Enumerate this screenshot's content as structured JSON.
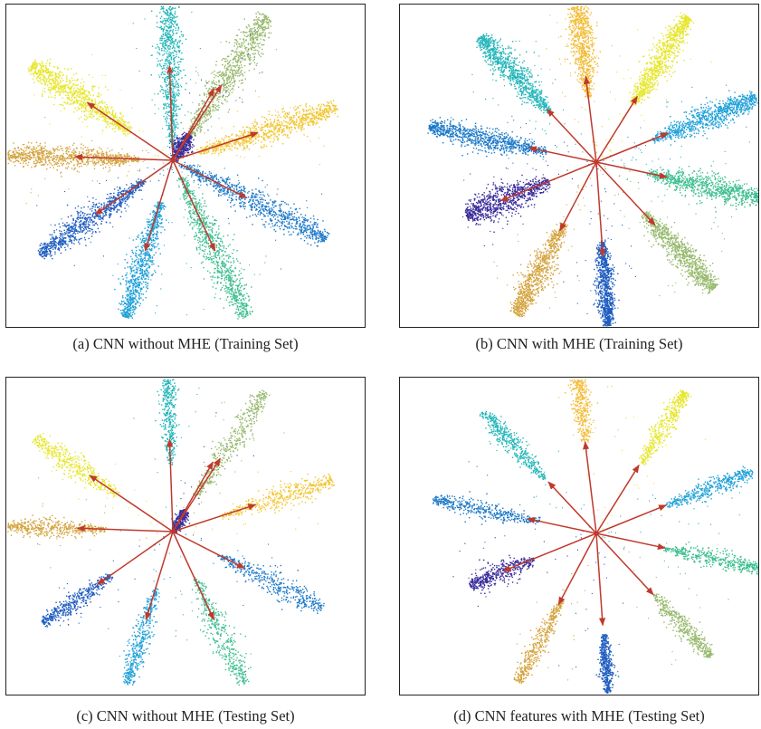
{
  "figure": {
    "captions": [
      "(a) CNN without MHE (Training Set)",
      "(b) CNN with MHE (Training Set)",
      "(c) CNN without MHE (Testing Set)",
      "(d) CNN features with MHE (Testing Set)"
    ]
  },
  "chart_data": [
    {
      "type": "scatter",
      "title": "(a) CNN without MHE (Training Set)",
      "axes_visible": false,
      "grid": false,
      "arrow_color": "#c0392b",
      "clusters": [
        {
          "color": "#21b5b8",
          "angle_deg": 92,
          "start": 0.08,
          "end": 1.0,
          "width": 0.03,
          "arrow": 0.55,
          "density": 1.0
        },
        {
          "color": "#96b86b",
          "angle_deg": 57,
          "start": 0.15,
          "end": 1.0,
          "width": 0.04,
          "arrow": 0.52,
          "density": 1.0
        },
        {
          "color": "#f2c530",
          "angle_deg": 18,
          "start": 0.15,
          "end": 1.0,
          "width": 0.032,
          "arrow": 0.52,
          "density": 1.0
        },
        {
          "color": "#1b78c8",
          "angle_deg": -27,
          "start": 0.05,
          "end": 1.0,
          "width": 0.038,
          "arrow": 0.48,
          "density": 1.0
        },
        {
          "color": "#3cbf8f",
          "angle_deg": -65,
          "start": 0.1,
          "end": 1.0,
          "width": 0.038,
          "arrow": 0.58,
          "density": 1.0
        },
        {
          "color": "#1ea0d8",
          "angle_deg": -107,
          "start": 0.25,
          "end": 0.95,
          "width": 0.032,
          "arrow": 0.55,
          "density": 1.0
        },
        {
          "color": "#1e5dc0",
          "angle_deg": -145,
          "start": 0.2,
          "end": 0.95,
          "width": 0.032,
          "arrow": 0.55,
          "density": 1.0
        },
        {
          "color": "#d4a33d",
          "angle_deg": 178,
          "start": 0.2,
          "end": 1.0,
          "width": 0.028,
          "arrow": 0.57,
          "density": 1.0
        },
        {
          "color": "#e6e62a",
          "angle_deg": 146,
          "start": 0.3,
          "end": 1.0,
          "width": 0.036,
          "arrow": 0.6,
          "density": 1.0
        },
        {
          "color": "#3a2d9c",
          "angle_deg": 60,
          "start": 0.0,
          "end": 0.18,
          "width": 0.035,
          "arrow": 0.48,
          "density": 0.6
        }
      ]
    },
    {
      "type": "scatter",
      "title": "(b) CNN with MHE (Training Set)",
      "axes_visible": false,
      "grid": false,
      "arrow_color": "#c0392b",
      "clusters": [
        {
          "color": "#f2bb33",
          "angle_deg": 97,
          "start": 0.38,
          "end": 1.0,
          "width": 0.03,
          "arrow": 0.5,
          "density": 1.0
        },
        {
          "color": "#e6e62a",
          "angle_deg": 58,
          "start": 0.4,
          "end": 1.0,
          "width": 0.03,
          "arrow": 0.45,
          "density": 1.0
        },
        {
          "color": "#1ea0d8",
          "angle_deg": 22,
          "start": 0.35,
          "end": 1.0,
          "width": 0.03,
          "arrow": 0.45,
          "density": 1.0
        },
        {
          "color": "#3cbf8f",
          "angle_deg": -12,
          "start": 0.3,
          "end": 1.0,
          "width": 0.03,
          "arrow": 0.42,
          "density": 1.0
        },
        {
          "color": "#96b86b",
          "angle_deg": -47,
          "start": 0.4,
          "end": 1.0,
          "width": 0.03,
          "arrow": 0.5,
          "density": 1.0
        },
        {
          "color": "#1e5dc0",
          "angle_deg": -86,
          "start": 0.45,
          "end": 0.95,
          "width": 0.022,
          "arrow": 0.55,
          "density": 1.0
        },
        {
          "color": "#d4a33d",
          "angle_deg": -118,
          "start": 0.4,
          "end": 1.0,
          "width": 0.03,
          "arrow": 0.45,
          "density": 1.0
        },
        {
          "color": "#3a2d9c",
          "angle_deg": -158,
          "start": 0.3,
          "end": 0.82,
          "width": 0.04,
          "arrow": 0.6,
          "density": 1.0
        },
        {
          "color": "#1b78c8",
          "angle_deg": 168,
          "start": 0.3,
          "end": 1.0,
          "width": 0.028,
          "arrow": 0.4,
          "density": 1.0
        },
        {
          "color": "#21b5b8",
          "angle_deg": 133,
          "start": 0.4,
          "end": 1.0,
          "width": 0.03,
          "arrow": 0.42,
          "density": 1.0
        }
      ]
    },
    {
      "type": "scatter",
      "title": "(c) CNN without MHE (Testing Set)",
      "axes_visible": false,
      "grid": false,
      "arrow_color": "#c0392b",
      "clusters": [
        {
          "color": "#21b5b8",
          "angle_deg": 92,
          "start": 0.4,
          "end": 1.0,
          "width": 0.02,
          "arrow": 0.55,
          "density": 0.5
        },
        {
          "color": "#96b86b",
          "angle_deg": 57,
          "start": 0.25,
          "end": 1.0,
          "width": 0.03,
          "arrow": 0.52,
          "density": 0.5
        },
        {
          "color": "#f2c530",
          "angle_deg": 18,
          "start": 0.3,
          "end": 1.0,
          "width": 0.028,
          "arrow": 0.52,
          "density": 0.5
        },
        {
          "color": "#1b78c8",
          "angle_deg": -27,
          "start": 0.3,
          "end": 1.0,
          "width": 0.03,
          "arrow": 0.48,
          "density": 0.5
        },
        {
          "color": "#3cbf8f",
          "angle_deg": -65,
          "start": 0.3,
          "end": 1.0,
          "width": 0.03,
          "arrow": 0.58,
          "density": 0.5
        },
        {
          "color": "#1ea0d8",
          "angle_deg": -107,
          "start": 0.35,
          "end": 0.95,
          "width": 0.025,
          "arrow": 0.55,
          "density": 0.5
        },
        {
          "color": "#1e5dc0",
          "angle_deg": -145,
          "start": 0.45,
          "end": 0.95,
          "width": 0.022,
          "arrow": 0.55,
          "density": 0.5
        },
        {
          "color": "#d4a33d",
          "angle_deg": 178,
          "start": 0.4,
          "end": 1.0,
          "width": 0.022,
          "arrow": 0.57,
          "density": 0.5
        },
        {
          "color": "#e6e62a",
          "angle_deg": 146,
          "start": 0.4,
          "end": 1.0,
          "width": 0.028,
          "arrow": 0.6,
          "density": 0.5
        },
        {
          "color": "#3a2d9c",
          "angle_deg": 60,
          "start": 0.0,
          "end": 0.15,
          "width": 0.03,
          "arrow": 0.48,
          "density": 0.4
        }
      ]
    },
    {
      "type": "scatter",
      "title": "(d) CNN features with MHE (Testing Set)",
      "axes_visible": false,
      "grid": false,
      "arrow_color": "#c0392b",
      "clusters": [
        {
          "color": "#f2bb33",
          "angle_deg": 97,
          "start": 0.55,
          "end": 1.0,
          "width": 0.022,
          "arrow": 0.55,
          "density": 0.5
        },
        {
          "color": "#e6e62a",
          "angle_deg": 58,
          "start": 0.5,
          "end": 1.0,
          "width": 0.022,
          "arrow": 0.48,
          "density": 0.5
        },
        {
          "color": "#1ea0d8",
          "angle_deg": 22,
          "start": 0.45,
          "end": 1.0,
          "width": 0.022,
          "arrow": 0.45,
          "density": 0.5
        },
        {
          "color": "#3cbf8f",
          "angle_deg": -12,
          "start": 0.4,
          "end": 1.0,
          "width": 0.022,
          "arrow": 0.42,
          "density": 0.5
        },
        {
          "color": "#96b86b",
          "angle_deg": -47,
          "start": 0.5,
          "end": 1.0,
          "width": 0.022,
          "arrow": 0.5,
          "density": 0.5
        },
        {
          "color": "#1e5dc0",
          "angle_deg": -86,
          "start": 0.6,
          "end": 0.95,
          "width": 0.015,
          "arrow": 0.55,
          "density": 0.5
        },
        {
          "color": "#d4a33d",
          "angle_deg": -118,
          "start": 0.45,
          "end": 1.0,
          "width": 0.022,
          "arrow": 0.48,
          "density": 0.5
        },
        {
          "color": "#3a2d9c",
          "angle_deg": -158,
          "start": 0.4,
          "end": 0.82,
          "width": 0.03,
          "arrow": 0.6,
          "density": 0.5
        },
        {
          "color": "#1b78c8",
          "angle_deg": 168,
          "start": 0.35,
          "end": 1.0,
          "width": 0.022,
          "arrow": 0.42,
          "density": 0.5
        },
        {
          "color": "#21b5b8",
          "angle_deg": 133,
          "start": 0.45,
          "end": 1.0,
          "width": 0.022,
          "arrow": 0.42,
          "density": 0.5
        }
      ]
    }
  ]
}
